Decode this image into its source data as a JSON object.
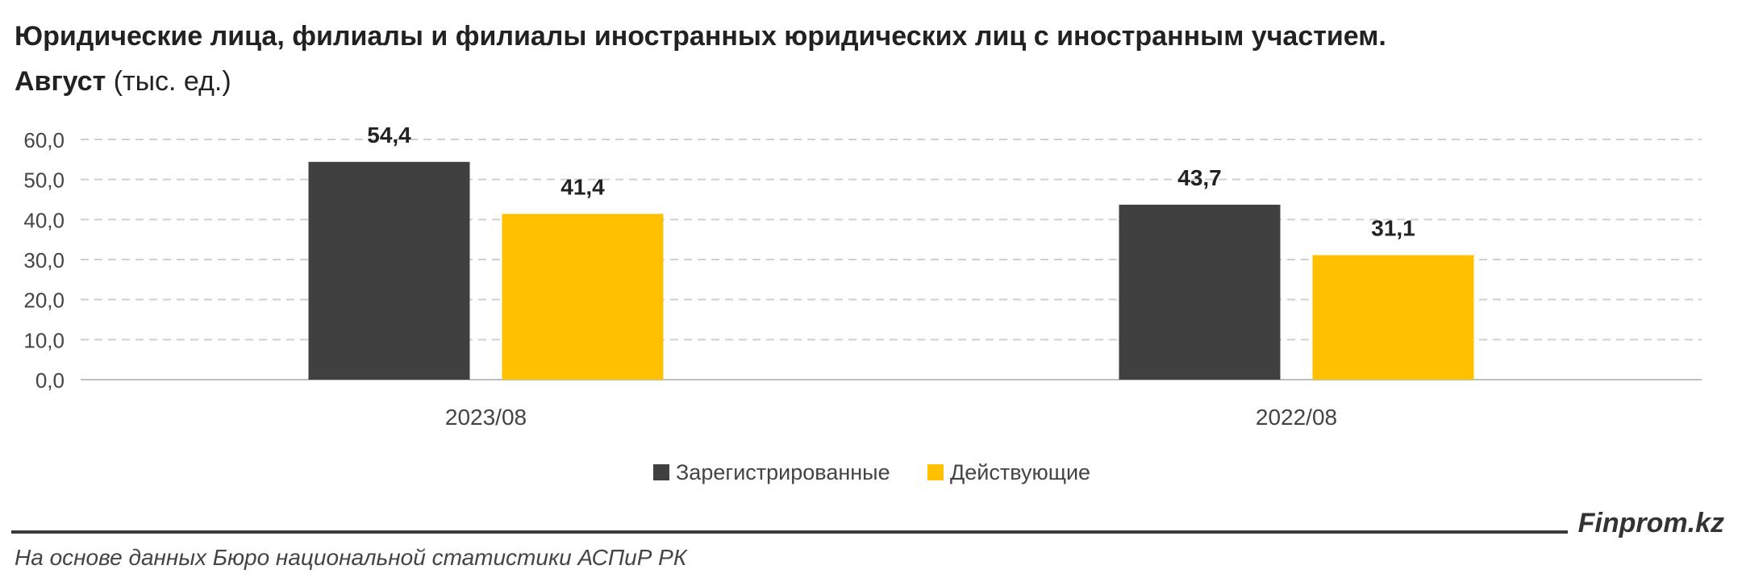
{
  "title": {
    "line1": "Юридические лица, филиалы и филиалы иностранных юридических лиц с иностранным участием.",
    "line2_bold": "Август",
    "line2_rest": " (тыс. ед.)"
  },
  "chart_data": {
    "type": "bar",
    "categories": [
      "2023/08",
      "2022/08"
    ],
    "series": [
      {
        "name": "Зарегистрированные",
        "values": [
          54.4,
          43.7
        ],
        "labels": [
          "54,4",
          "43,7"
        ],
        "color": "#404040"
      },
      {
        "name": "Действующие",
        "values": [
          41.4,
          31.1
        ],
        "labels": [
          "41,4",
          "31,1"
        ],
        "color": "#FFC000"
      }
    ],
    "ylim": [
      0,
      60
    ],
    "yticks": [
      "0,0",
      "10,0",
      "20,0",
      "30,0",
      "40,0",
      "50,0",
      "60,0"
    ],
    "grid": true,
    "legend": "bottom-center"
  },
  "footer": {
    "brand": "Finprom.kz",
    "source": "На основе данных Бюро национальной статистики АСПиР РК"
  }
}
